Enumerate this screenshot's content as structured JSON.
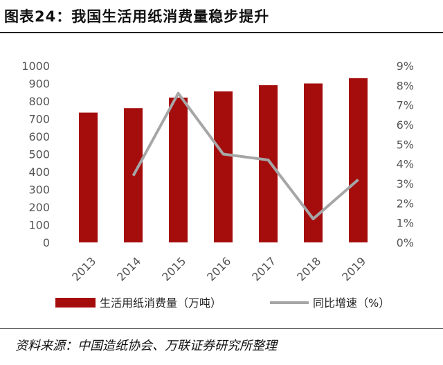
{
  "title": "图表24：我国生活用纸消费量稳步提升",
  "source": "资料来源：中国造纸协会、万联证券研究所整理",
  "chart_data": {
    "type": "bar",
    "categories": [
      "2013",
      "2014",
      "2015",
      "2016",
      "2017",
      "2018",
      "2019"
    ],
    "series": [
      {
        "name": "生活用纸消费量（万吨）",
        "type": "bar",
        "axis": "left",
        "color": "#a50d0d",
        "values": [
          735,
          760,
          820,
          855,
          890,
          900,
          930
        ]
      },
      {
        "name": "同比增速（%）",
        "type": "line",
        "axis": "right",
        "color": "#a6a6a6",
        "values": [
          null,
          3.4,
          7.6,
          4.5,
          4.2,
          1.2,
          3.2
        ]
      }
    ],
    "y_left": {
      "min": 0,
      "max": 1000,
      "ticks": [
        "0",
        "100",
        "200",
        "300",
        "400",
        "500",
        "600",
        "700",
        "800",
        "900",
        "1000"
      ]
    },
    "y_right": {
      "min": 0,
      "max": 9,
      "ticks": [
        "0%",
        "1%",
        "2%",
        "3%",
        "4%",
        "5%",
        "6%",
        "7%",
        "8%",
        "9%"
      ]
    },
    "grid": false,
    "legend": "bottom"
  }
}
